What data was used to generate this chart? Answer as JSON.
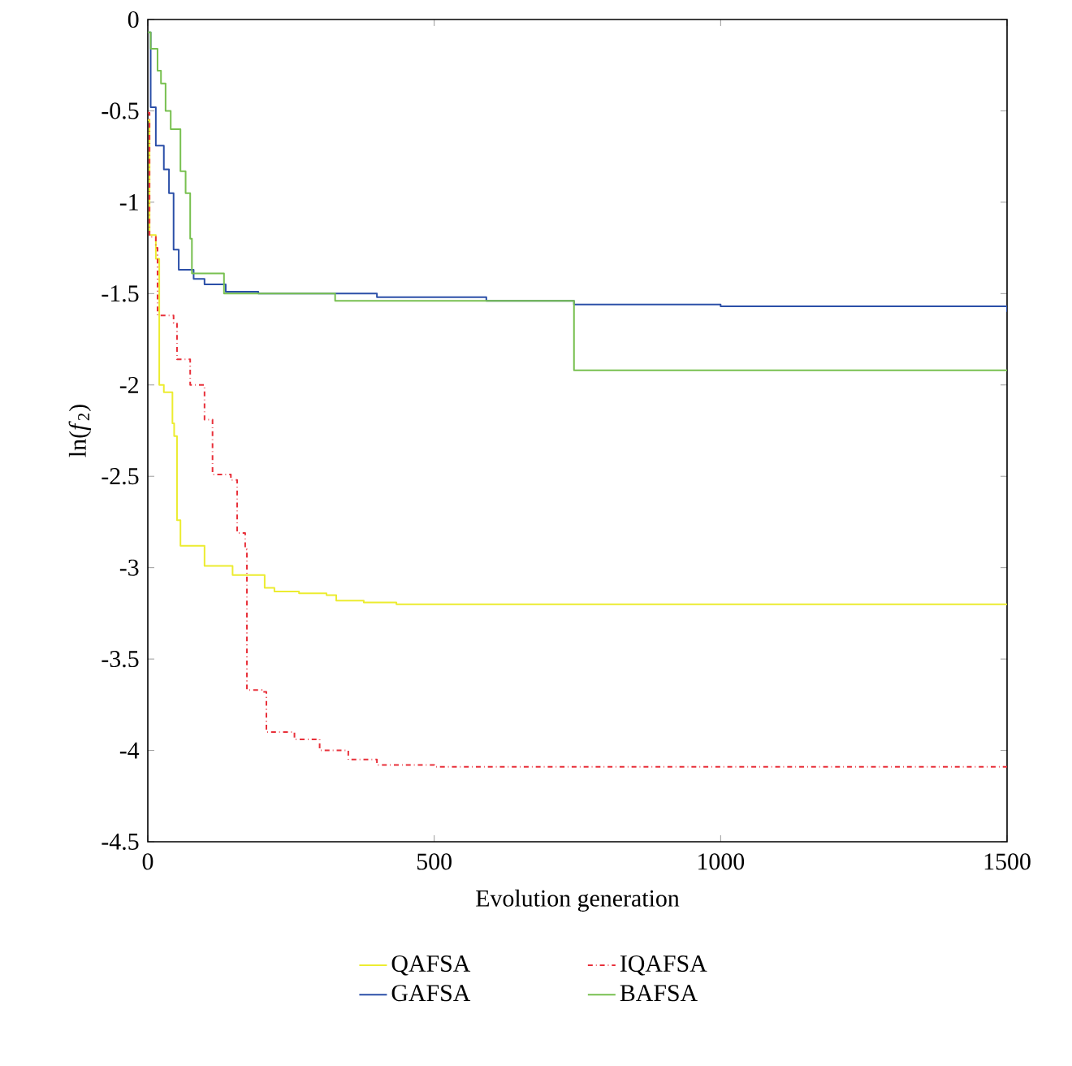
{
  "chart_data": {
    "type": "step",
    "xlabel": "Evolution generation",
    "ylabel": "ln(*f*$_{2}$)",
    "xlim": [
      0,
      1500
    ],
    "ylim": [
      -4.5,
      0
    ],
    "xticks": [
      0,
      500,
      1000,
      1500
    ],
    "yticks": [
      -4.5,
      -4,
      -3.5,
      -3,
      -2.5,
      -2,
      -1.5,
      -1,
      -0.5,
      0
    ],
    "grid": false,
    "legend": "bottom",
    "marker": "none",
    "series": [
      {
        "name": "QAFSA",
        "color": "#ecec30",
        "line_style": "solid",
        "x": [
          0,
          3,
          14,
          20,
          28,
          43,
          46,
          51,
          57,
          99,
          148,
          204,
          221,
          264,
          312,
          329,
          377,
          434,
          497,
          1500
        ],
        "values": [
          -0.55,
          -1.18,
          -1.31,
          -2.0,
          -2.04,
          -2.21,
          -2.28,
          -2.74,
          -2.88,
          -2.99,
          -3.04,
          -3.11,
          -3.13,
          -3.14,
          -3.15,
          -3.18,
          -3.19,
          -3.2,
          -3.2,
          -3.2
        ]
      },
      {
        "name": "IQAFSA",
        "color": "#e8303a",
        "line_style": "dashdot",
        "x": [
          0,
          3,
          14,
          17,
          45,
          51,
          74,
          99,
          113,
          145,
          156,
          170,
          173,
          199,
          207,
          256,
          300,
          350,
          400,
          500,
          1000,
          1500
        ],
        "values": [
          -0.51,
          -1.19,
          -1.25,
          -1.62,
          -1.66,
          -1.86,
          -2.0,
          -2.19,
          -2.49,
          -2.52,
          -2.81,
          -2.9,
          -3.67,
          -3.68,
          -3.9,
          -3.94,
          -4.0,
          -4.05,
          -4.08,
          -4.09,
          -4.09,
          -4.1
        ]
      },
      {
        "name": "GAFSA",
        "color": "#2b4fa8",
        "line_style": "solid",
        "x": [
          0,
          5,
          14,
          28,
          37,
          45,
          54,
          80,
          99,
          136,
          193,
          400,
          591,
          744,
          1000,
          1500
        ],
        "values": [
          -0.07,
          -0.48,
          -0.69,
          -0.82,
          -0.95,
          -1.26,
          -1.37,
          -1.42,
          -1.45,
          -1.49,
          -1.5,
          -1.52,
          -1.54,
          -1.56,
          -1.57,
          -1.6
        ]
      },
      {
        "name": "BAFSA",
        "color": "#78c050",
        "line_style": "solid",
        "x": [
          0,
          5,
          17,
          23,
          31,
          40,
          57,
          66,
          74,
          77,
          133,
          327,
          744,
          1500
        ],
        "values": [
          -0.07,
          -0.16,
          -0.28,
          -0.35,
          -0.5,
          -0.6,
          -0.83,
          -0.95,
          -1.2,
          -1.39,
          -1.5,
          -1.54,
          -1.92,
          -1.92
        ]
      }
    ]
  }
}
